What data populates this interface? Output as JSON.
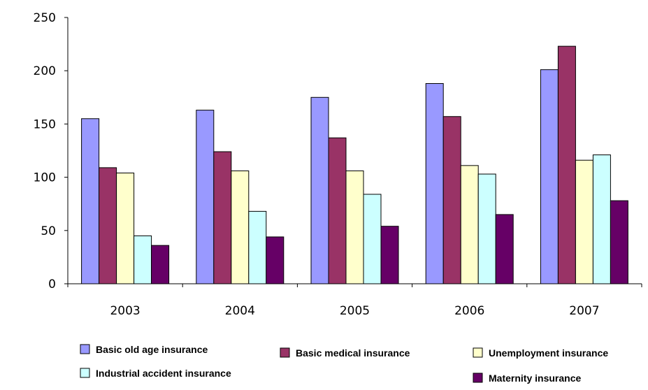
{
  "chart_data": {
    "type": "bar",
    "title": "",
    "xlabel": "",
    "ylabel": "",
    "categories": [
      "2003",
      "2004",
      "2005",
      "2006",
      "2007"
    ],
    "ylim": [
      0,
      250
    ],
    "yticks": [
      0,
      50,
      100,
      150,
      200,
      250
    ],
    "grid": false,
    "legend_position": "bottom",
    "series": [
      {
        "name": "Basic old age insurance",
        "color": "#9999ff",
        "values": [
          155,
          163,
          175,
          188,
          201
        ]
      },
      {
        "name": "Basic medical insurance",
        "color": "#993366",
        "values": [
          109,
          124,
          137,
          157,
          223
        ]
      },
      {
        "name": "Unemployment insurance",
        "color": "#ffffcc",
        "values": [
          104,
          106,
          106,
          111,
          116
        ]
      },
      {
        "name": "Industrial accident insurance",
        "color": "#ccffff",
        "values": [
          45,
          68,
          84,
          103,
          121
        ]
      },
      {
        "name": "Maternity insurance",
        "color": "#660066",
        "values": [
          36,
          44,
          54,
          65,
          78
        ]
      }
    ]
  }
}
